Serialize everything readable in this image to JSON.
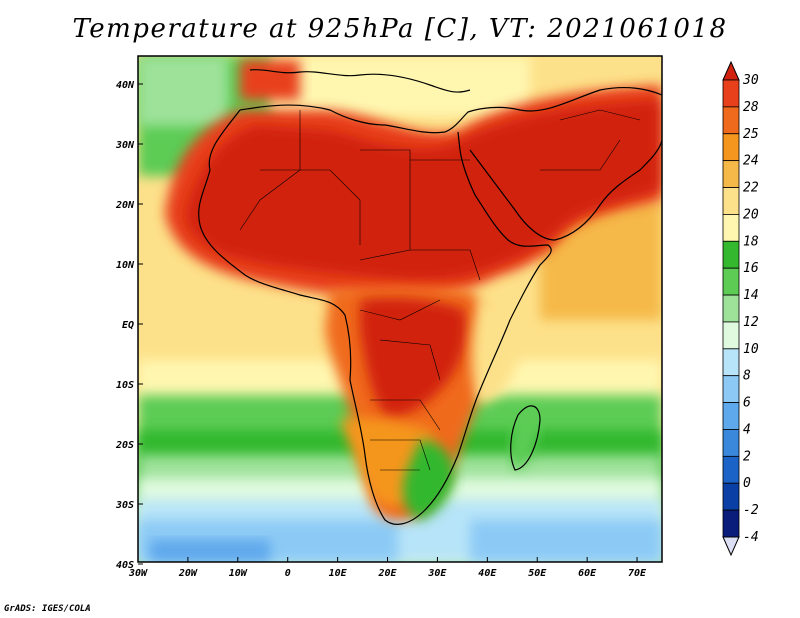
{
  "title": "Temperature at 925hPa [C], VT: 2021061018",
  "footer": "GrADS: IGES/COLA",
  "map": {
    "lon_ticks": [
      "30W",
      "20W",
      "10W",
      "0",
      "10E",
      "20E",
      "30E",
      "40E",
      "50E",
      "60E",
      "70E"
    ],
    "lat_ticks": [
      "40N",
      "30N",
      "20N",
      "10N",
      "EQ",
      "10S",
      "20S",
      "30S",
      "40S"
    ],
    "lon_range": [
      -30,
      75
    ],
    "lat_range": [
      -40,
      44
    ]
  },
  "colorbar": {
    "labels": [
      "30",
      "28",
      "25",
      "24",
      "22",
      "20",
      "18",
      "16",
      "14",
      "12",
      "10",
      "8",
      "6",
      "4",
      "2",
      "0",
      "-2",
      "-4"
    ],
    "colors": [
      "#d1210f",
      "#e8401a",
      "#f06a1d",
      "#f5961f",
      "#f5b94a",
      "#fde18a",
      "#fff7b0",
      "#33b82e",
      "#5ccc55",
      "#9ee29a",
      "#e0fae0",
      "#b7e4f8",
      "#8ccaf5",
      "#5ea8ec",
      "#3988dc",
      "#1c63c8",
      "#0a3fa6",
      "#0a1d7a",
      "#dde0f5"
    ]
  },
  "legend_colors": {
    "ocean_warm": "#fde18a",
    "land_hot": "#d1210f",
    "south_cool": "#5ccc55"
  }
}
